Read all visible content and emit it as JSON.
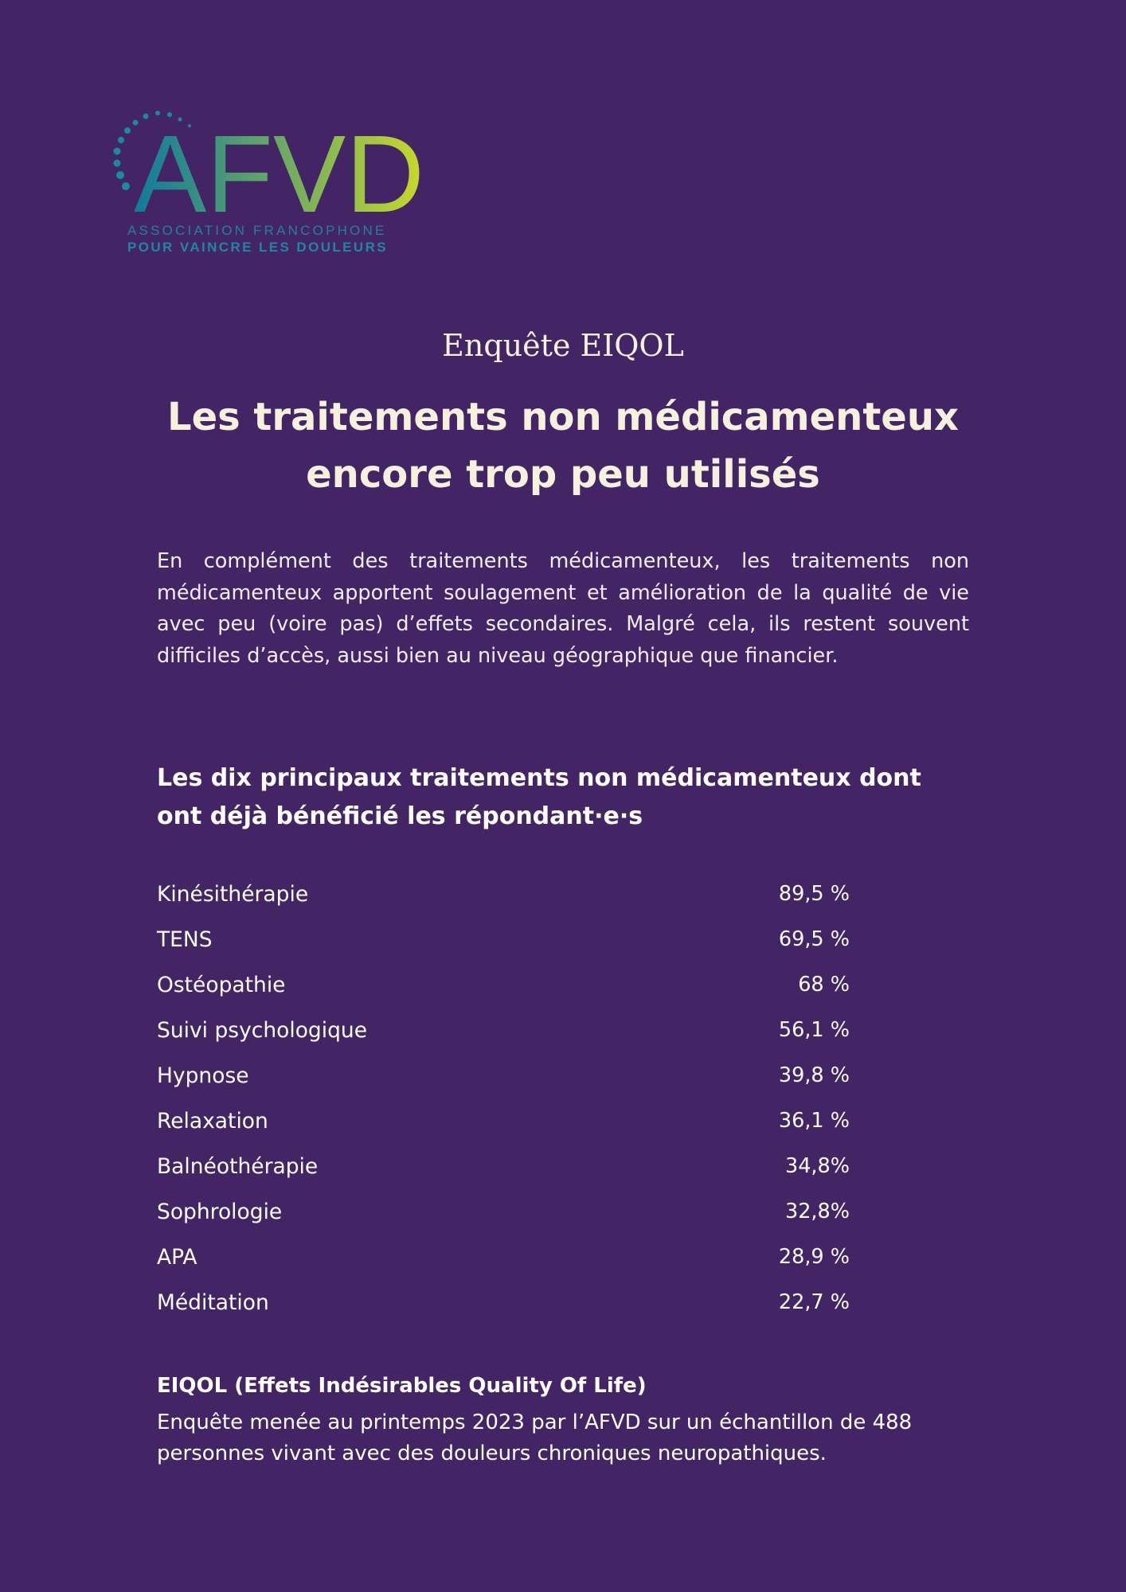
{
  "logo": {
    "wordmark": "AFVD",
    "line1": "ASSOCIATION FRANCOPHONE",
    "line2": "POUR VAINCRE LES DOULEURS",
    "gradient_start": "#0e7a9c",
    "gradient_end": "#c7d92a"
  },
  "kicker": "Enquête EIQOL",
  "headline": {
    "line1": "Les traitements non médicamenteux",
    "line2": "encore trop peu utilisés"
  },
  "intro": "En complément des traitements médicamenteux, les traitements non médicamenteux apportent soulagement et amélioration de la qualité de vie avec peu (voire pas) d’effets secondaires. Malgré cela, ils restent souvent difficiles d’accès, aussi bien au niveau géographique que financier.",
  "section_title": {
    "line1": "Les dix principaux traitements non médicamenteux dont",
    "line2": "ont déjà bénéficié les répondant·e·s"
  },
  "treatments": [
    {
      "label": "Kinésithérapie",
      "value": "89,5 %"
    },
    {
      "label": "TENS",
      "value": "69,5 %"
    },
    {
      "label": "Ostéopathie",
      "value": "68 %"
    },
    {
      "label": "Suivi psychologique",
      "value": "56,1 %"
    },
    {
      "label": "Hypnose",
      "value": "39,8 %"
    },
    {
      "label": "Relaxation",
      "value": "36,1 %"
    },
    {
      "label": "Balnéothérapie",
      "value": "34,8%"
    },
    {
      "label": "Sophrologie",
      "value": "32,8%"
    },
    {
      "label": "APA",
      "value": "28,9 %"
    },
    {
      "label": "Méditation",
      "value": "22,7 %"
    }
  ],
  "note": {
    "title": "EIQOL (Effets Indésirables Quality Of Life)",
    "body": "Enquête menée au printemps 2023 par l’AFVD sur un échantillon de 488 personnes vivant avec des douleurs chroniques neuropathiques."
  },
  "colors": {
    "background": "#432566",
    "headline": "#f5f1dc"
  }
}
